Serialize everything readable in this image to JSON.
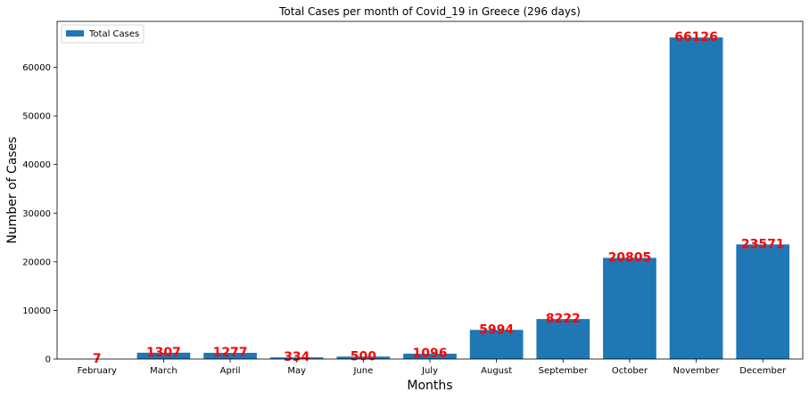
{
  "chart_data": {
    "type": "bar",
    "title": "Total Cases per month of Covid_19 in Greece (296 days)",
    "xlabel": "Months",
    "ylabel": "Number of Cases",
    "categories": [
      "February",
      "March",
      "April",
      "May",
      "June",
      "July",
      "August",
      "September",
      "October",
      "November",
      "December"
    ],
    "series": [
      {
        "name": "Total Cases",
        "values": [
          7,
          1307,
          1277,
          334,
          500,
          1096,
          5994,
          8222,
          20805,
          66126,
          23571
        ]
      }
    ],
    "ylim": [
      0,
      69436
    ],
    "yticks": [
      0,
      10000,
      20000,
      30000,
      40000,
      50000,
      60000
    ],
    "grid": false,
    "legend": "top-left",
    "colors": {
      "bar": "#1f77b4",
      "data_label": "#ff0000"
    }
  }
}
